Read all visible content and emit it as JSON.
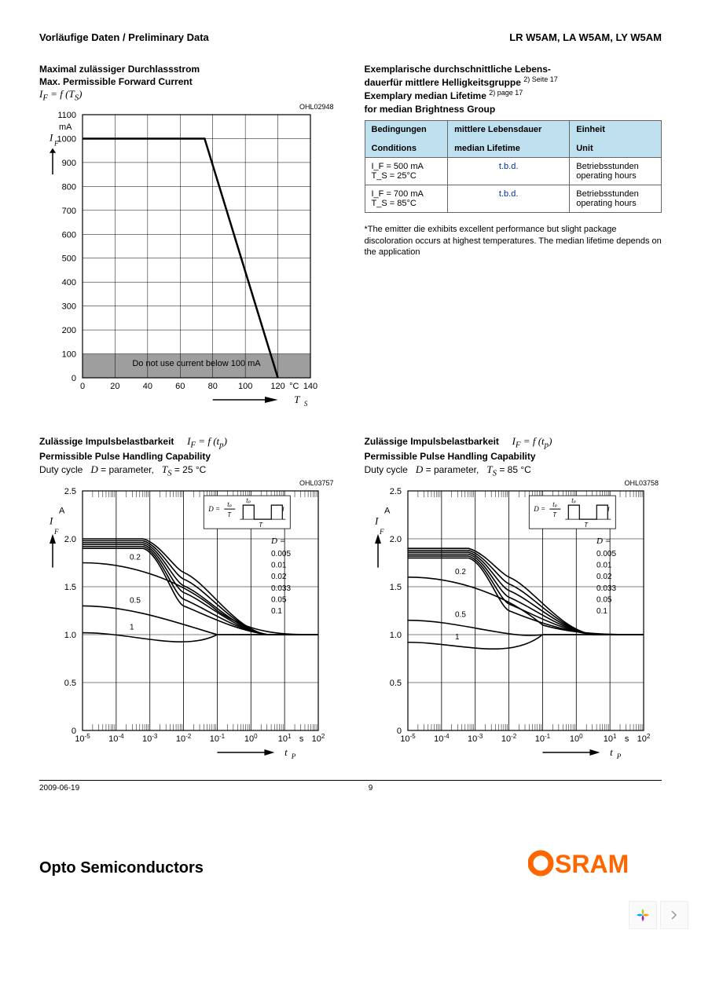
{
  "header": {
    "left": "Vorläufige Daten / Preliminary Data",
    "right": "LR W5AM, LA W5AM, LY W5AM"
  },
  "chart1": {
    "title_de": "Maximal zulässiger Durchlassstrom",
    "title_en": "Max. Permissible Forward Current",
    "formula": "I_F = f (T_S)",
    "code": "OHL02948",
    "xlim": [
      0,
      140
    ],
    "xticks": [
      0,
      20,
      40,
      60,
      80,
      100,
      120,
      140
    ],
    "xlabel": "T_S",
    "xunit": "°C",
    "ylim": [
      0,
      1100
    ],
    "yticks": [
      0,
      100,
      200,
      300,
      400,
      500,
      600,
      700,
      800,
      900,
      1000,
      1100
    ],
    "ylabel": "I_F",
    "yunit": "mA",
    "line": [
      [
        0,
        1000
      ],
      [
        75,
        1000
      ],
      [
        120,
        0
      ]
    ],
    "shade_ymax": 100,
    "shade_label": "Do not use current below 100 mA",
    "colors": {
      "line": "#000000",
      "grid": "#000000",
      "shade": "#9e9e9e",
      "text": "#000000"
    }
  },
  "table": {
    "title_de1": "Exemplarische durchschnittliche Lebens-",
    "title_de2": "dauerfür mittlere Helligkeitsgruppe",
    "title_en1": "Exemplary median Lifetime",
    "title_en2": "for median Brightness Group",
    "ref1": "2) Seite 17",
    "ref2": "2) page 17",
    "head_bg": "#bfe0ef",
    "columns": [
      {
        "de": "Bedingungen",
        "en": "Conditions"
      },
      {
        "de": "mittlere Lebensdauer",
        "en": "median Lifetime"
      },
      {
        "de": "Einheit",
        "en": "Unit"
      }
    ],
    "rows": [
      {
        "cond_l1": "I_F = 500 mA",
        "cond_l2": "T_S = 25°C",
        "life": "t.b.d.",
        "unit_de": "Betriebsstunden",
        "unit_en": "operating hours"
      },
      {
        "cond_l1": "I_F = 700 mA",
        "cond_l2": "T_S = 85°C",
        "life": "t.b.d.",
        "unit_de": "Betriebsstunden",
        "unit_en": "operating hours"
      }
    ],
    "life_color": "#003399",
    "note": "*The emitter die exhibits excellent performance but slight package discoloration occurs at highest temperatures. The median lifetime depends on the application"
  },
  "chart2": {
    "title_de": "Zulässige Impulsbelastbarkeit",
    "title_en": "Permissible Pulse Handling Capability",
    "formula": "I_F = f (t_p)",
    "params_prefix": "Duty cycle",
    "params_d": "D = parameter,",
    "params_ts": "T_S = 25 °C",
    "code": "OHL03757",
    "xscale": "log",
    "xlim": [
      -5,
      2
    ],
    "xticks": [
      -5,
      -4,
      -3,
      -2,
      -1,
      0,
      1,
      2
    ],
    "xlabel": "t_P",
    "xunit": "s",
    "ylim": [
      0,
      2.5
    ],
    "yticks": [
      0,
      0.5,
      1.0,
      1.5,
      2.0,
      2.5
    ],
    "ylabel": "I_F",
    "yunit": "A",
    "d_left": [
      0.2,
      0.5,
      1
    ],
    "d_right_label": "D =",
    "d_right": [
      0.005,
      0.01,
      0.02,
      0.033,
      0.05,
      0.1
    ],
    "colors": {
      "line": "#000000",
      "grid": "#000000",
      "text": "#000000"
    }
  },
  "chart3": {
    "title_de": "Zulässige Impulsbelastbarkeit",
    "title_en": "Permissible Pulse Handling Capability",
    "formula": "I_F = f (t_p)",
    "params_prefix": "Duty cycle",
    "params_d": "D = parameter,",
    "params_ts": "T_S = 85 °C",
    "code": "OHL03758",
    "xscale": "log",
    "xlim": [
      -5,
      2
    ],
    "xticks": [
      -5,
      -4,
      -3,
      -2,
      -1,
      0,
      1,
      2
    ],
    "xlabel": "t_P",
    "xunit": "s",
    "ylim": [
      0,
      2.5
    ],
    "yticks": [
      0,
      0.5,
      1.0,
      1.5,
      2.0,
      2.5
    ],
    "ylabel": "I_F",
    "yunit": "A",
    "d_left": [
      0.2,
      0.5,
      1
    ],
    "d_right_label": "D =",
    "d_right": [
      0.005,
      0.01,
      0.02,
      0.033,
      0.05,
      0.1
    ],
    "colors": {
      "line": "#000000",
      "grid": "#000000",
      "text": "#000000"
    }
  },
  "footer": {
    "date": "2009-06-19",
    "page": "9"
  },
  "brand": {
    "text": "Opto Semiconductors",
    "logo": "OSRAM",
    "logo_color": "#ff6600"
  }
}
